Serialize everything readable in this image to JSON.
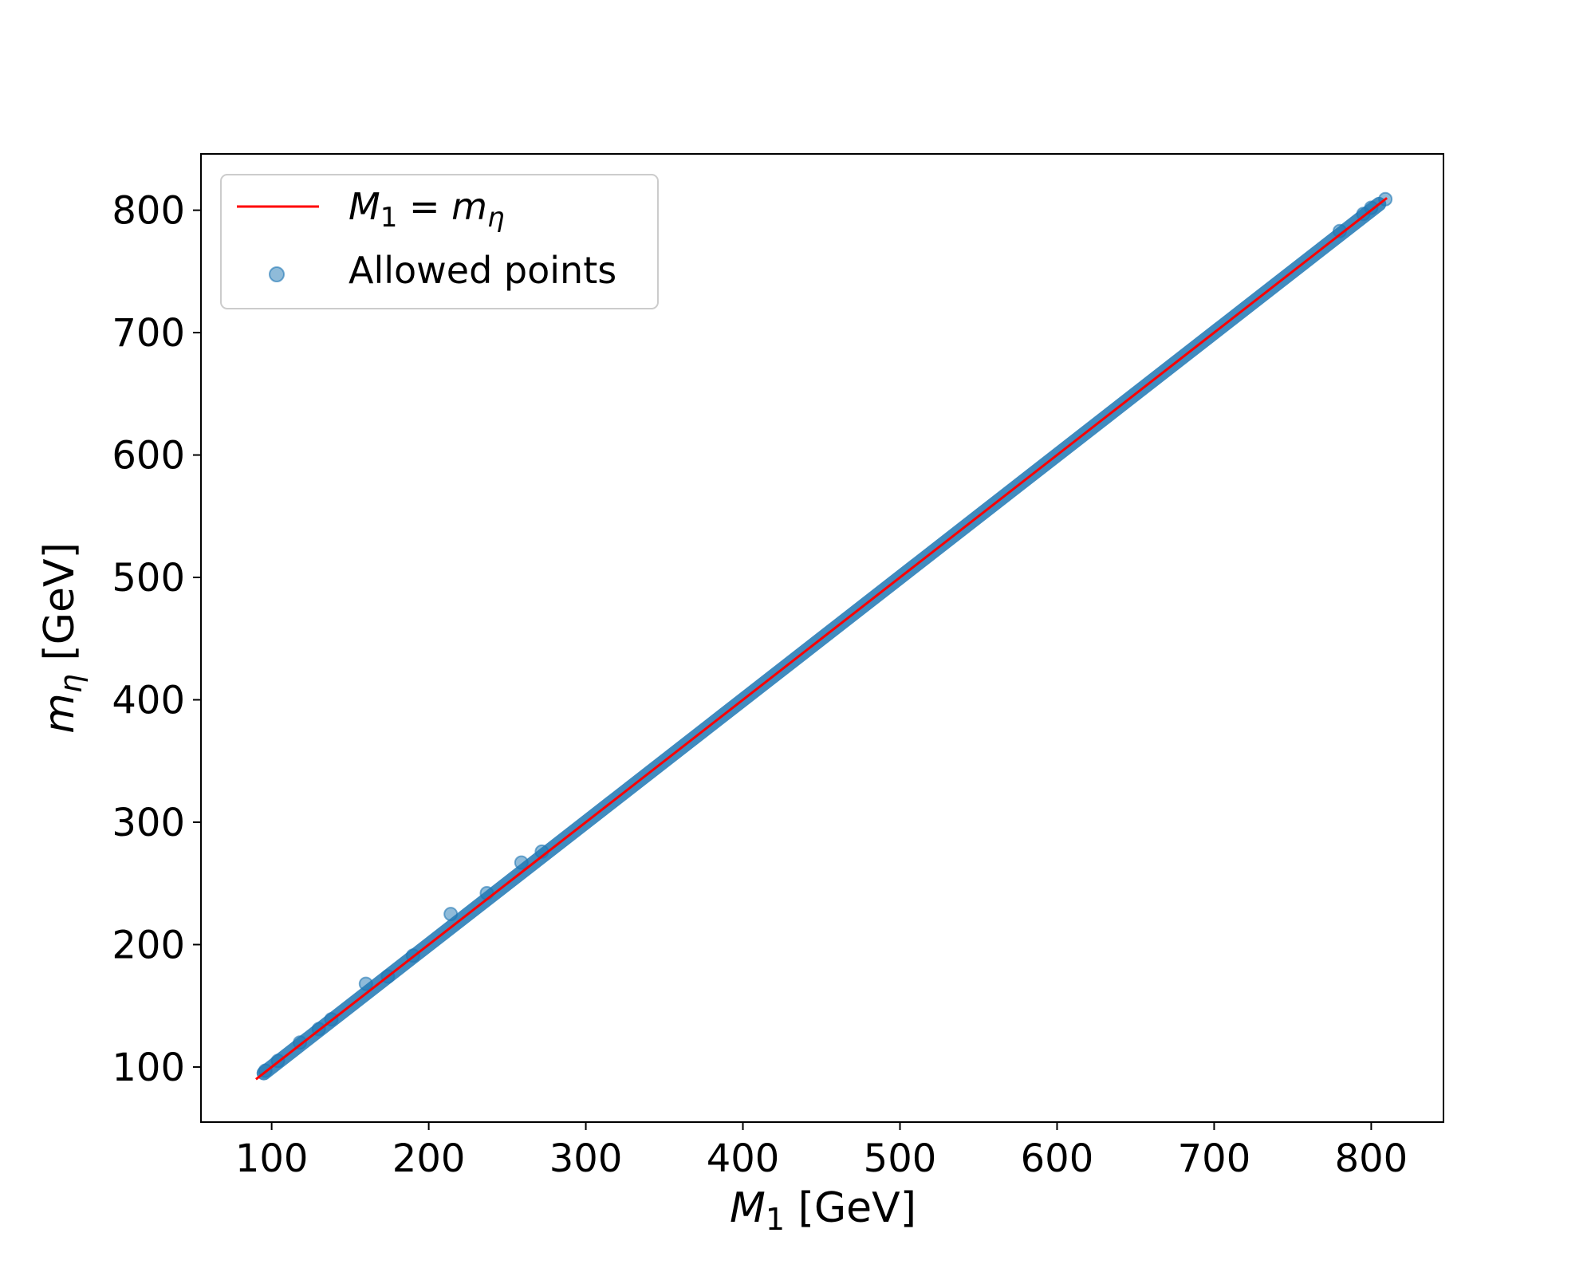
{
  "chart_data": {
    "type": "scatter",
    "xlabel": {
      "symbol": "M",
      "sub": "1",
      "unit": " [GeV]"
    },
    "ylabel": {
      "symbol": "m",
      "sub": "η",
      "unit": " [GeV]"
    },
    "xlim": [
      55,
      846
    ],
    "ylim": [
      55,
      846
    ],
    "xticks": [
      100,
      200,
      300,
      400,
      500,
      600,
      700,
      800
    ],
    "yticks": [
      100,
      200,
      300,
      400,
      500,
      600,
      700,
      800
    ],
    "xtick_labels": [
      "100",
      "200",
      "300",
      "400",
      "500",
      "600",
      "700",
      "800"
    ],
    "ytick_labels": [
      "100",
      "200",
      "300",
      "400",
      "500",
      "600",
      "700",
      "800"
    ],
    "grid": false,
    "legend_position": "top-left",
    "legend": [
      {
        "kind": "line",
        "label": {
          "lhs": "M",
          "lhs_sub": "1",
          "eq": " = ",
          "rhs": "m",
          "rhs_sub": "η"
        }
      },
      {
        "kind": "scatter",
        "label": "Allowed points"
      }
    ],
    "series": [
      {
        "kind": "line",
        "color": "#ff0000",
        "x": [
          90,
          810
        ],
        "y": [
          90,
          810
        ]
      },
      {
        "kind": "scatter",
        "name": "Allowed points",
        "color": "#1f77b4",
        "alpha": 0.5,
        "dense_band": {
          "x_from": 95,
          "x_to": 805,
          "spread": 2
        },
        "outliers": [
          {
            "x": 96,
            "y": 97
          },
          {
            "x": 104,
            "y": 105
          },
          {
            "x": 118,
            "y": 120
          },
          {
            "x": 130,
            "y": 131
          },
          {
            "x": 138,
            "y": 139
          },
          {
            "x": 160,
            "y": 168
          },
          {
            "x": 174,
            "y": 174
          },
          {
            "x": 190,
            "y": 191
          },
          {
            "x": 214,
            "y": 225
          },
          {
            "x": 237,
            "y": 242
          },
          {
            "x": 259,
            "y": 267
          },
          {
            "x": 272,
            "y": 276
          },
          {
            "x": 780,
            "y": 783
          },
          {
            "x": 795,
            "y": 797
          },
          {
            "x": 800,
            "y": 802
          },
          {
            "x": 809,
            "y": 809
          }
        ]
      }
    ]
  }
}
